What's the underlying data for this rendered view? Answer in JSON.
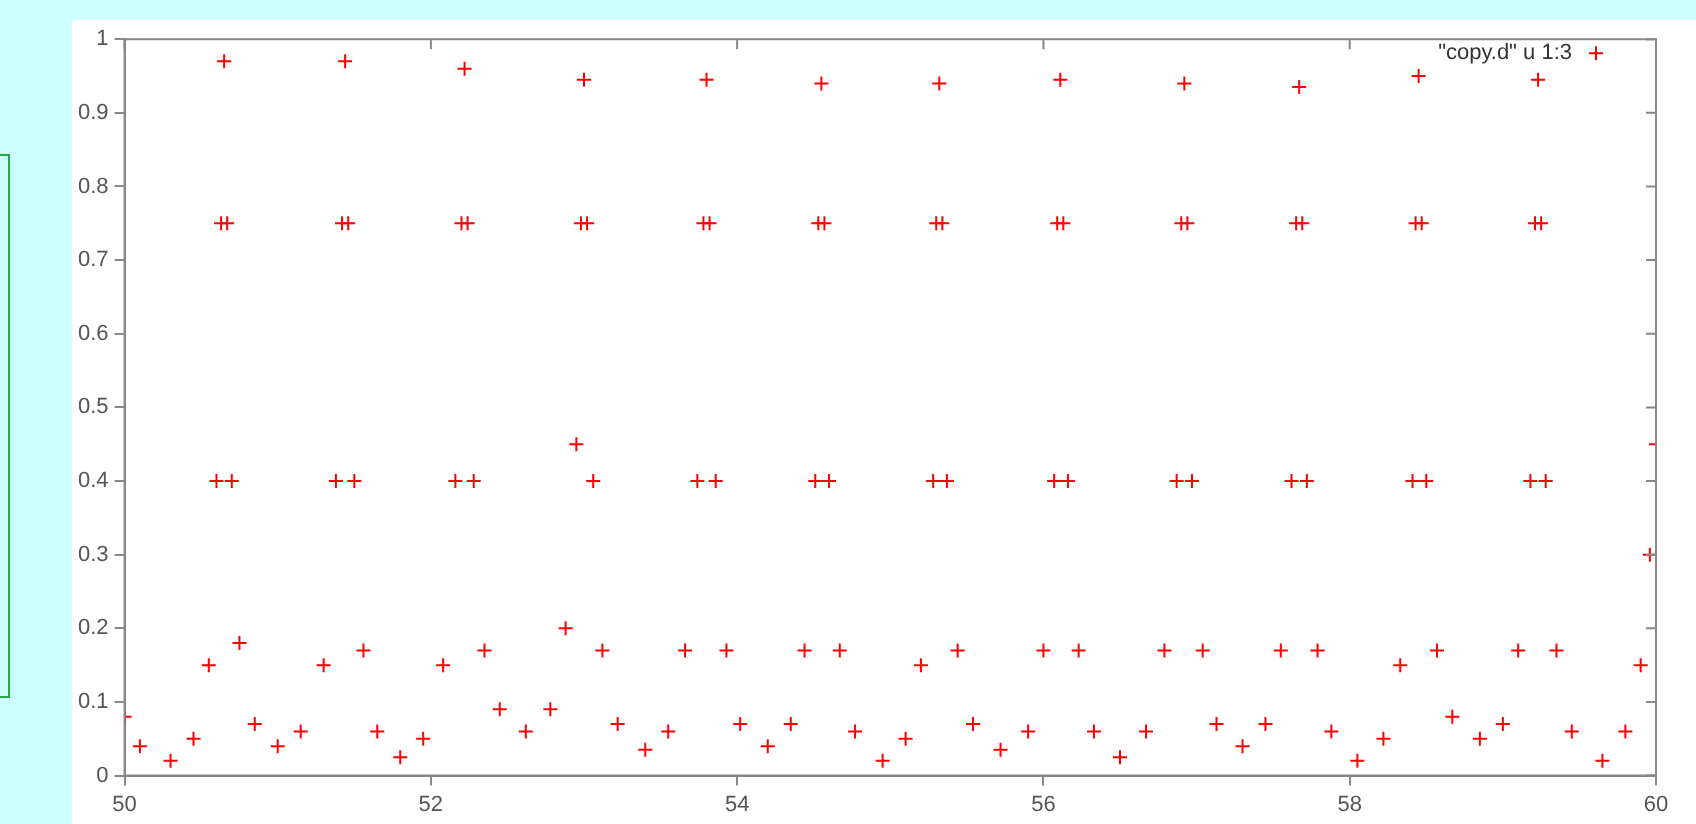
{
  "chart_data": {
    "type": "scatter",
    "marker": "cross",
    "legend": "top right",
    "grid": false,
    "xlim": [
      50,
      60
    ],
    "xticks": [
      50,
      52,
      54,
      56,
      58,
      60
    ],
    "ylim": [
      0,
      1
    ],
    "yticks": [
      0,
      0.1,
      0.2,
      0.3,
      0.4,
      0.5,
      0.6,
      0.7,
      0.8,
      0.9,
      1
    ],
    "series": [
      {
        "name": "\"copy.d\" u 1:3",
        "color": "#ff0000",
        "x": [
          50.0,
          50.1,
          50.3,
          50.45,
          50.55,
          50.6,
          50.63,
          50.65,
          50.67,
          50.7,
          50.75,
          50.85,
          51.0,
          51.15,
          51.3,
          51.38,
          51.42,
          51.44,
          51.46,
          51.5,
          51.56,
          51.65,
          51.8,
          51.95,
          52.08,
          52.16,
          52.2,
          52.22,
          52.24,
          52.28,
          52.35,
          52.45,
          52.62,
          52.78,
          52.88,
          52.95,
          52.98,
          53.0,
          53.02,
          53.06,
          53.12,
          53.22,
          53.4,
          53.55,
          53.66,
          53.74,
          53.78,
          53.8,
          53.82,
          53.86,
          53.93,
          54.02,
          54.2,
          54.35,
          54.44,
          54.51,
          54.53,
          54.55,
          54.57,
          54.6,
          54.67,
          54.77,
          54.95,
          55.1,
          55.2,
          55.28,
          55.3,
          55.32,
          55.34,
          55.37,
          55.44,
          55.54,
          55.72,
          55.9,
          56.0,
          56.07,
          56.09,
          56.11,
          56.13,
          56.16,
          56.23,
          56.33,
          56.5,
          56.67,
          56.79,
          56.87,
          56.9,
          56.92,
          56.94,
          56.97,
          57.04,
          57.13,
          57.3,
          57.45,
          57.55,
          57.62,
          57.65,
          57.67,
          57.69,
          57.72,
          57.79,
          57.88,
          58.05,
          58.22,
          58.33,
          58.41,
          58.43,
          58.45,
          58.47,
          58.5,
          58.57,
          58.67,
          58.85,
          59.0,
          59.1,
          59.18,
          59.21,
          59.23,
          59.25,
          59.28,
          59.35,
          59.45,
          59.65,
          59.8,
          59.9,
          59.96,
          60.0
        ],
        "values": [
          0.08,
          0.04,
          0.02,
          0.05,
          0.15,
          0.4,
          0.75,
          0.97,
          0.75,
          0.4,
          0.18,
          0.07,
          0.04,
          0.06,
          0.15,
          0.4,
          0.75,
          0.97,
          0.75,
          0.4,
          0.17,
          0.06,
          0.025,
          0.05,
          0.15,
          0.4,
          0.75,
          0.96,
          0.75,
          0.4,
          0.17,
          0.09,
          0.06,
          0.09,
          0.2,
          0.45,
          0.75,
          0.945,
          0.75,
          0.4,
          0.17,
          0.07,
          0.035,
          0.06,
          0.17,
          0.4,
          0.75,
          0.945,
          0.75,
          0.4,
          0.17,
          0.07,
          0.04,
          0.07,
          0.17,
          0.4,
          0.75,
          0.94,
          0.75,
          0.4,
          0.17,
          0.06,
          0.02,
          0.05,
          0.15,
          0.4,
          0.75,
          0.94,
          0.75,
          0.4,
          0.17,
          0.07,
          0.035,
          0.06,
          0.17,
          0.4,
          0.75,
          0.945,
          0.75,
          0.4,
          0.17,
          0.06,
          0.025,
          0.06,
          0.17,
          0.4,
          0.75,
          0.94,
          0.75,
          0.4,
          0.17,
          0.07,
          0.04,
          0.07,
          0.17,
          0.4,
          0.75,
          0.935,
          0.75,
          0.4,
          0.17,
          0.06,
          0.02,
          0.05,
          0.15,
          0.4,
          0.75,
          0.95,
          0.75,
          0.4,
          0.17,
          0.08,
          0.05,
          0.07,
          0.17,
          0.4,
          0.75,
          0.945,
          0.75,
          0.4,
          0.17,
          0.06,
          0.02,
          0.06,
          0.15,
          0.3,
          0.45
        ]
      }
    ]
  }
}
